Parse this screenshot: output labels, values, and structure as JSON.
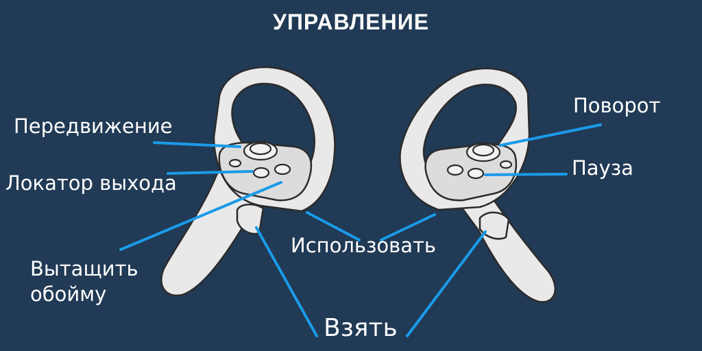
{
  "title": "УПРАВЛЕНИЕ",
  "labels": {
    "move": "Передвижение",
    "exit_locator": "Локатор выхода",
    "eject_mag_line1": "Вытащить",
    "eject_mag_line2": "обойму",
    "use": "Использовать",
    "grab": "Взять",
    "turn": "Поворот",
    "pause": "Пауза"
  },
  "colors": {
    "background": "#213a55",
    "pointer": "#1a9be8",
    "controller": "#e9e9ea",
    "text": "#ffffff"
  },
  "icons": {
    "left": "left-vr-controller-icon",
    "right": "right-vr-controller-icon"
  }
}
